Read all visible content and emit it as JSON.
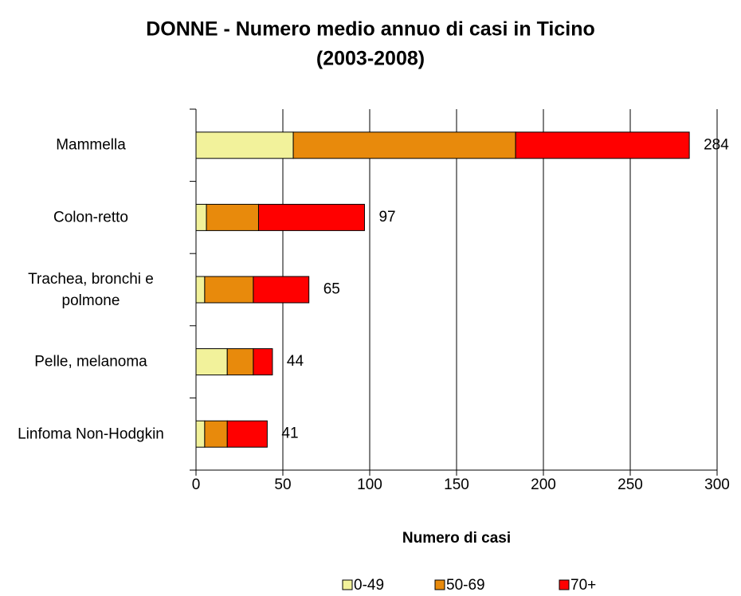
{
  "chart_data": {
    "type": "stacked-bar-horizontal",
    "title": "DONNE - Numero medio annuo di casi in Ticino",
    "subtitle": "(2003-2008)",
    "xlabel": "Numero di casi",
    "categories": [
      "Mammella",
      "Colon-retto",
      "Trachea, bronchi e polmone",
      "Pelle, melanoma",
      "Linfoma Non-Hodgkin"
    ],
    "series": [
      {
        "name": "0-49",
        "color": "#f2f29b",
        "values": [
          56,
          6,
          5,
          18,
          5
        ]
      },
      {
        "name": "50-69",
        "color": "#e88a0c",
        "values": [
          128,
          30,
          28,
          15,
          13
        ]
      },
      {
        "name": "70+",
        "color": "#ff0000",
        "values": [
          100,
          61,
          32,
          11,
          23
        ]
      }
    ],
    "totals": [
      284,
      97,
      65,
      44,
      41
    ],
    "xlim": [
      0,
      300
    ],
    "xticks": [
      0,
      50,
      100,
      150,
      200,
      250,
      300
    ],
    "grid": true
  }
}
